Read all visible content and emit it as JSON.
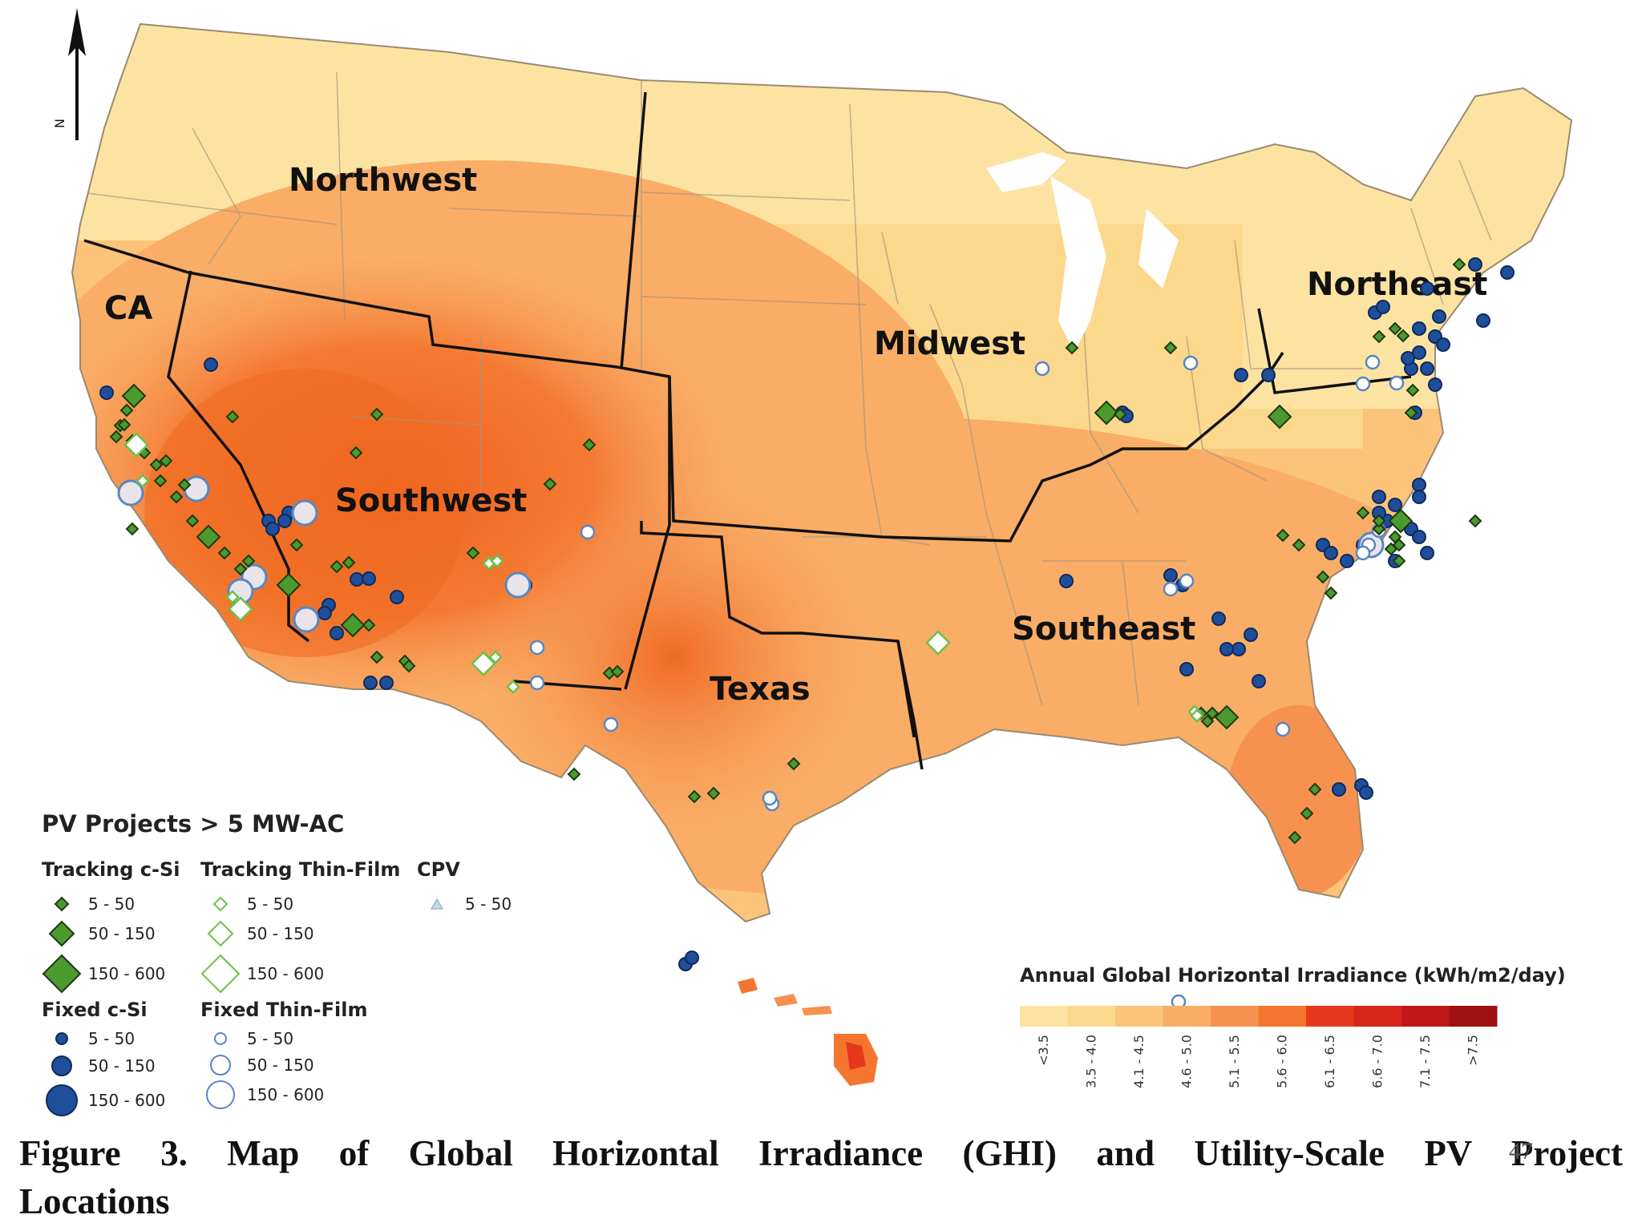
{
  "map": {
    "north_label": "N",
    "regions": [
      {
        "name": "Northwest"
      },
      {
        "name": "CA"
      },
      {
        "name": "Southwest"
      },
      {
        "name": "Midwest"
      },
      {
        "name": "Northeast"
      },
      {
        "name": "Texas"
      },
      {
        "name": "Southeast"
      }
    ]
  },
  "legend": {
    "title": "PV Projects > 5 MW-AC",
    "groups": [
      {
        "label": "Tracking c-Si",
        "marker": "diamond-filled",
        "color": "#4a9a2e",
        "sizes": [
          "5 - 50",
          "50 - 150",
          "150 - 600"
        ]
      },
      {
        "label": "Tracking Thin-Film",
        "marker": "diamond-hollow",
        "color": "#6cc04a",
        "sizes": [
          "5 - 50",
          "50 - 150",
          "150 - 600"
        ]
      },
      {
        "label": "CPV",
        "marker": "triangle",
        "color": "#9ab8c8",
        "sizes": [
          "5 - 50"
        ]
      },
      {
        "label": "Fixed c-Si",
        "marker": "circle-filled",
        "color": "#1f4e9a",
        "sizes": [
          "5 - 50",
          "50 - 150",
          "150 - 600"
        ]
      },
      {
        "label": "Fixed Thin-Film",
        "marker": "circle-hollow",
        "color": "#5a86c2",
        "sizes": [
          "5 - 50",
          "50 - 150",
          "150 - 600"
        ]
      }
    ]
  },
  "ghi_scale": {
    "title": "Annual Global Horizontal Irradiance (kWh/m2/day)",
    "bins": [
      "<3.5",
      "3.5 - 4.0",
      "4.1 - 4.5",
      "4.6 - 5.0",
      "5.1 - 5.5",
      "5.6 - 6.0",
      "6.1 - 6.5",
      "6.6 - 7.0",
      "7.1 - 7.5",
      ">7.5"
    ],
    "colors": [
      "#fde3a2",
      "#fcd88c",
      "#fbc47a",
      "#f9ad66",
      "#f79150",
      "#f4762e",
      "#e8381c",
      "#d8261c",
      "#c01818",
      "#a01010"
    ]
  },
  "caption": {
    "line1": "Figure 3. Map of Global Horizontal Irradiance (GHI) and Utility-Scale PV Project",
    "line2": "Locations",
    "page_number": "47"
  }
}
